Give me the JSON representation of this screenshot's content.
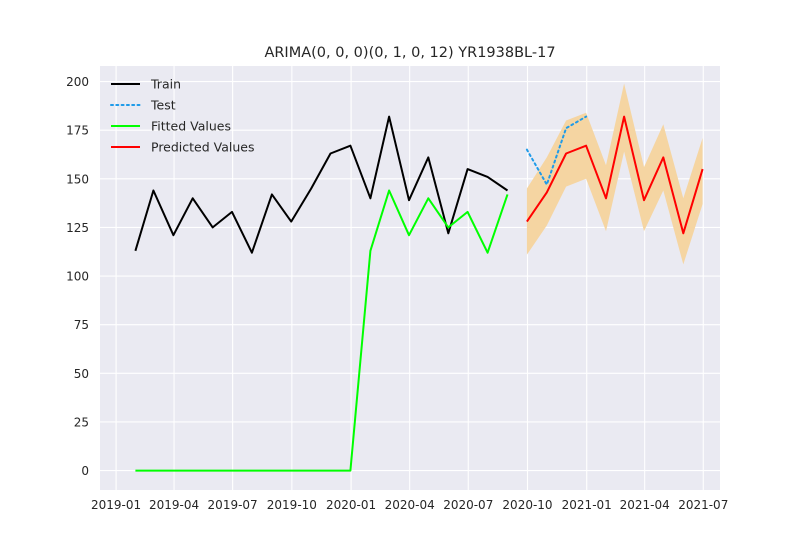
{
  "chart_data": {
    "type": "line",
    "title": "ARIMA(0, 0, 0)(0, 1, 0, 12) YR1938BL-17",
    "xlabel": "",
    "ylabel": "",
    "xlim": [
      "2018-12-07",
      "2021-07-27"
    ],
    "ylim": [
      -10,
      208
    ],
    "grid": true,
    "legend_position": "top-left",
    "colors": {
      "background": "#eaeaf2",
      "grid": "#ffffff"
    },
    "x_ticks": [
      {
        "date": "2019-01-01",
        "label": "2019-01"
      },
      {
        "date": "2019-04-01",
        "label": "2019-04"
      },
      {
        "date": "2019-07-01",
        "label": "2019-07"
      },
      {
        "date": "2019-10-01",
        "label": "2019-10"
      },
      {
        "date": "2020-01-01",
        "label": "2020-01"
      },
      {
        "date": "2020-04-01",
        "label": "2020-04"
      },
      {
        "date": "2020-07-01",
        "label": "2020-07"
      },
      {
        "date": "2020-10-01",
        "label": "2020-10"
      },
      {
        "date": "2021-01-01",
        "label": "2021-01"
      },
      {
        "date": "2021-04-01",
        "label": "2021-04"
      },
      {
        "date": "2021-07-01",
        "label": "2021-07"
      }
    ],
    "y_ticks": [
      0,
      25,
      50,
      75,
      100,
      125,
      150,
      175,
      200
    ],
    "confidence_band": {
      "color": "#f5d5a2",
      "x": [
        "2020-09-30",
        "2020-10-31",
        "2020-11-30",
        "2020-12-31",
        "2021-01-31",
        "2021-02-28",
        "2021-03-31",
        "2021-04-30",
        "2021-05-31",
        "2021-06-30"
      ],
      "lower": [
        111,
        126,
        146,
        150,
        123,
        164,
        123,
        144,
        106,
        137
      ],
      "upper": [
        145,
        161,
        180,
        184,
        157,
        199,
        156,
        178,
        140,
        171
      ]
    },
    "series": [
      {
        "name": "Train",
        "color": "#000000",
        "style": "solid",
        "x": [
          "2019-01-31",
          "2019-02-28",
          "2019-03-31",
          "2019-04-30",
          "2019-05-31",
          "2019-06-30",
          "2019-07-31",
          "2019-08-31",
          "2019-09-30",
          "2019-10-31",
          "2019-11-30",
          "2019-12-31",
          "2020-01-31",
          "2020-02-29",
          "2020-03-31",
          "2020-04-30",
          "2020-05-31",
          "2020-06-30",
          "2020-07-31",
          "2020-08-31"
        ],
        "values": [
          113,
          144,
          121,
          140,
          125,
          133,
          112,
          142,
          128,
          145,
          163,
          167,
          140,
          182,
          139,
          161,
          122,
          155,
          151,
          144
        ]
      },
      {
        "name": "Test",
        "color": "#1f9be9",
        "style": "dotted",
        "x": [
          "2020-09-30",
          "2020-10-31",
          "2020-11-30",
          "2020-12-31"
        ],
        "values": [
          165,
          147,
          176,
          182
        ]
      },
      {
        "name": "Fitted Values",
        "color": "#00ff00",
        "style": "solid",
        "x": [
          "2019-01-31",
          "2019-02-28",
          "2019-03-31",
          "2019-04-30",
          "2019-05-31",
          "2019-06-30",
          "2019-07-31",
          "2019-08-31",
          "2019-09-30",
          "2019-10-31",
          "2019-11-30",
          "2019-12-31",
          "2020-01-31",
          "2020-02-29",
          "2020-03-31",
          "2020-04-30",
          "2020-05-31",
          "2020-06-30",
          "2020-07-31",
          "2020-08-31"
        ],
        "values": [
          0,
          0,
          0,
          0,
          0,
          0,
          0,
          0,
          0,
          0,
          0,
          0,
          113,
          144,
          121,
          140,
          125,
          133,
          112,
          142
        ]
      },
      {
        "name": "Predicted Values",
        "color": "#ff0000",
        "style": "solid",
        "x": [
          "2020-09-30",
          "2020-10-31",
          "2020-11-30",
          "2020-12-31",
          "2021-01-31",
          "2021-02-28",
          "2021-03-31",
          "2021-04-30",
          "2021-05-31",
          "2021-06-30"
        ],
        "values": [
          128,
          143,
          163,
          167,
          140,
          182,
          139,
          161,
          122,
          155
        ]
      }
    ]
  }
}
